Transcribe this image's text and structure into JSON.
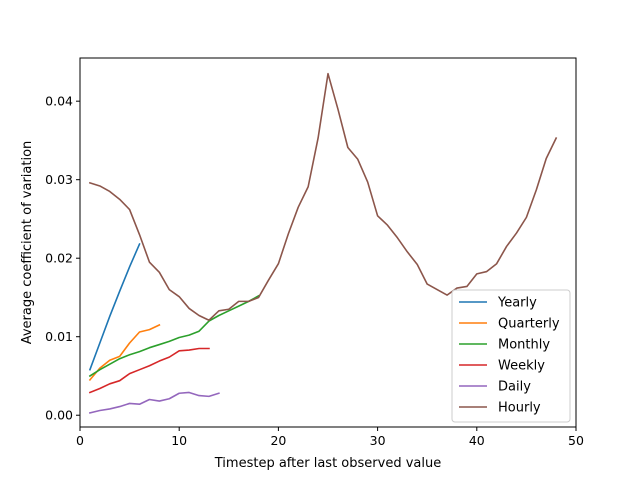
{
  "chart_data": {
    "type": "line",
    "xlabel": "Timestep after last observed value",
    "ylabel": "Average coefficient of variation",
    "xlim": [
      0,
      50
    ],
    "ylim": [
      -0.0015,
      0.0455
    ],
    "xticks": [
      0,
      10,
      20,
      30,
      40,
      50
    ],
    "yticks": [
      0.0,
      0.01,
      0.02,
      0.03,
      0.04
    ],
    "xtick_labels": [
      "0",
      "10",
      "20",
      "30",
      "40",
      "50"
    ],
    "ytick_labels": [
      "0.00",
      "0.01",
      "0.02",
      "0.03",
      "0.04"
    ],
    "grid": false,
    "legend_position": "lower-right",
    "series": [
      {
        "name": "Yearly",
        "color": "#1f77b4",
        "x": [
          1,
          2,
          3,
          4,
          5,
          6
        ],
        "y": [
          0.0058,
          0.0092,
          0.0126,
          0.0158,
          0.0189,
          0.0218
        ]
      },
      {
        "name": "Quarterly",
        "color": "#ff7f0e",
        "x": [
          1,
          2,
          3,
          4,
          5,
          6,
          7,
          8
        ],
        "y": [
          0.0045,
          0.006,
          0.007,
          0.0075,
          0.0092,
          0.0106,
          0.0109,
          0.0115
        ]
      },
      {
        "name": "Monthly",
        "color": "#2ca02c",
        "x": [
          1,
          2,
          3,
          4,
          5,
          6,
          7,
          8,
          9,
          10,
          11,
          12,
          13,
          14,
          15,
          16,
          17,
          18
        ],
        "y": [
          0.005,
          0.0058,
          0.0065,
          0.0072,
          0.0077,
          0.0081,
          0.0086,
          0.009,
          0.0094,
          0.0099,
          0.0102,
          0.0107,
          0.012,
          0.0127,
          0.0133,
          0.0139,
          0.0145,
          0.0152
        ]
      },
      {
        "name": "Weekly",
        "color": "#d62728",
        "x": [
          1,
          2,
          3,
          4,
          5,
          6,
          7,
          8,
          9,
          10,
          11,
          12,
          13
        ],
        "y": [
          0.0029,
          0.0034,
          0.004,
          0.0044,
          0.0053,
          0.0058,
          0.0063,
          0.0069,
          0.0074,
          0.0082,
          0.0083,
          0.0085,
          0.0085
        ]
      },
      {
        "name": "Daily",
        "color": "#9467bd",
        "x": [
          1,
          2,
          3,
          4,
          5,
          6,
          7,
          8,
          9,
          10,
          11,
          12,
          13,
          14
        ],
        "y": [
          0.0003,
          0.0006,
          0.0008,
          0.0011,
          0.0015,
          0.0014,
          0.002,
          0.0018,
          0.0021,
          0.0028,
          0.0029,
          0.0025,
          0.0024,
          0.0028
        ]
      },
      {
        "name": "Hourly",
        "color": "#8c564b",
        "x": [
          1,
          2,
          3,
          4,
          5,
          6,
          7,
          8,
          9,
          10,
          11,
          12,
          13,
          14,
          15,
          16,
          17,
          18,
          19,
          20,
          21,
          22,
          23,
          24,
          25,
          26,
          27,
          28,
          29,
          30,
          31,
          32,
          33,
          34,
          35,
          36,
          37,
          38,
          39,
          40,
          41,
          42,
          43,
          44,
          45,
          46,
          47,
          48
        ],
        "y": [
          0.0296,
          0.0292,
          0.0285,
          0.0275,
          0.0262,
          0.023,
          0.0195,
          0.0182,
          0.016,
          0.0151,
          0.0136,
          0.0127,
          0.0121,
          0.0133,
          0.0135,
          0.0145,
          0.0145,
          0.015,
          0.0172,
          0.0193,
          0.0231,
          0.0265,
          0.0291,
          0.0353,
          0.0435,
          0.039,
          0.0341,
          0.0326,
          0.0297,
          0.0254,
          0.0242,
          0.0226,
          0.0208,
          0.0192,
          0.0167,
          0.016,
          0.0153,
          0.0162,
          0.0164,
          0.018,
          0.0183,
          0.0193,
          0.0215,
          0.0232,
          0.0252,
          0.0287,
          0.0327,
          0.0353
        ]
      }
    ]
  }
}
